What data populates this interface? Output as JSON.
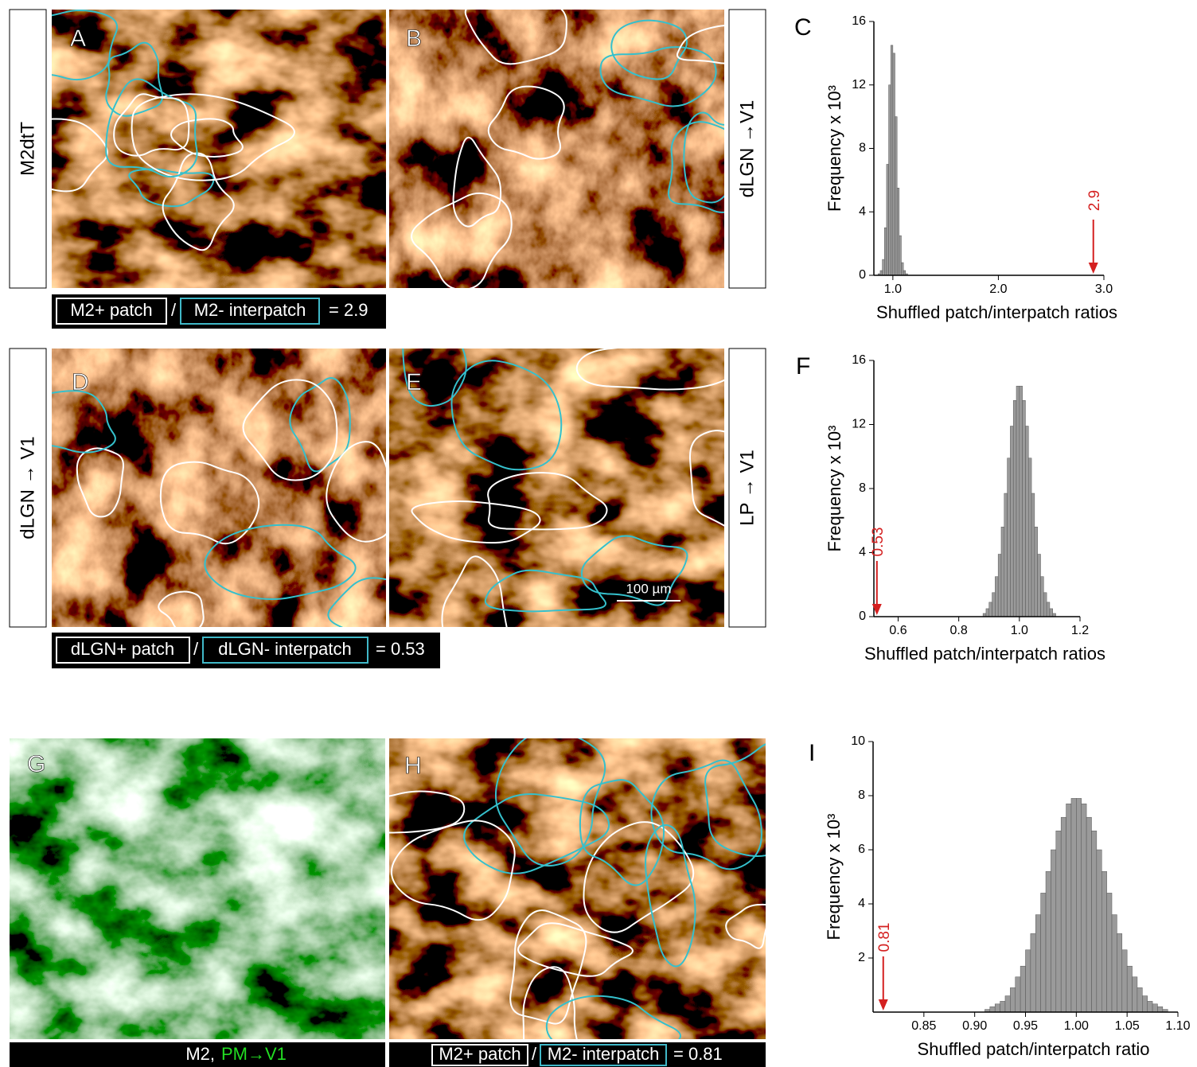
{
  "panel_labels": [
    "A",
    "B",
    "C",
    "D",
    "E",
    "F",
    "G",
    "H",
    "I"
  ],
  "side_labels": [
    "M2dtT",
    "dLGN →V1",
    "dLGN → V1",
    "LP → V1"
  ],
  "captions": [
    {
      "patch": "M2+ patch",
      "sep": "/",
      "interpatch": "M2- interpatch",
      "result": "= 2.9"
    },
    {
      "patch": "dLGN+ patch",
      "sep": "/",
      "interpatch": "dLGN- interpatch",
      "result": "= 0.53"
    },
    {
      "patch": "M2+ patch",
      "sep": "/",
      "interpatch": "M2- interpatch",
      "result": "= 0.81"
    }
  ],
  "g_caption": {
    "white": "M2,",
    "green": "PM→V1"
  },
  "scale_bar": "100 µm",
  "chart_data": [
    {
      "type": "histogram",
      "ylabel": "Frequency x 10³",
      "xlabel": "Shuffled patch/interpatch ratios",
      "bins": [
        0.86,
        0.88,
        0.9,
        0.92,
        0.94,
        0.96,
        0.98,
        1.0,
        1.02,
        1.04,
        1.06,
        1.08,
        1.1,
        1.12,
        1.14
      ],
      "counts": [
        0.1,
        0.3,
        1,
        3,
        7,
        12,
        14.5,
        14,
        10,
        5.5,
        2.5,
        0.8,
        0.3,
        0.1
      ],
      "color": "#9a9a9a",
      "xlim": [
        0.82,
        3.0
      ],
      "ylim": [
        0,
        16
      ],
      "xticks": [
        {
          "value": 1,
          "label": "1.0"
        },
        {
          "value": 2,
          "label": "2.0"
        },
        {
          "value": 3,
          "label": "3.0"
        }
      ],
      "yticks": [
        0,
        4,
        8,
        12,
        16
      ],
      "arrow_at": 2.9,
      "arrow_color": "#d42020"
    },
    {
      "type": "histogram",
      "ylabel": "Frequency x 10³",
      "xlabel": "Shuffled patch/interpatch ratios",
      "bins": [
        0.88,
        0.89,
        0.9,
        0.91,
        0.92,
        0.93,
        0.94,
        0.95,
        0.96,
        0.97,
        0.98,
        0.99,
        1.0,
        1.01,
        1.02,
        1.03,
        1.04,
        1.05,
        1.06,
        1.07,
        1.08,
        1.09,
        1.1,
        1.11,
        1.12
      ],
      "counts": [
        0.2,
        0.5,
        0.9,
        1.5,
        2.5,
        3.9,
        5.6,
        7.7,
        9.9,
        11.9,
        13.5,
        14.4,
        14.4,
        13.5,
        11.9,
        9.9,
        7.7,
        5.6,
        3.9,
        2.5,
        1.5,
        0.9,
        0.5,
        0.2
      ],
      "color": "#9a9a9a",
      "xlim": [
        0.52,
        1.2
      ],
      "ylim": [
        0,
        16
      ],
      "xticks": [
        0.6,
        0.8,
        {
          "value": 1,
          "label": "1.0"
        },
        1.2
      ],
      "yticks": [
        0,
        4,
        8,
        12,
        16
      ],
      "arrow_at": 0.53,
      "arrow_color": "#d42020"
    },
    {
      "type": "histogram",
      "ylabel": "Frequency x 10³",
      "xlabel": "Shuffled patch/interpatch ratio",
      "bins": [
        0.91,
        0.915,
        0.92,
        0.925,
        0.93,
        0.935,
        0.94,
        0.945,
        0.95,
        0.955,
        0.96,
        0.965,
        0.97,
        0.975,
        0.98,
        0.985,
        0.99,
        0.995,
        1.0,
        1.005,
        1.01,
        1.015,
        1.02,
        1.025,
        1.03,
        1.035,
        1.04,
        1.045,
        1.05,
        1.055,
        1.06,
        1.065,
        1.07,
        1.075,
        1.08,
        1.085,
        1.09
      ],
      "counts": [
        0.1,
        0.2,
        0.3,
        0.4,
        0.6,
        0.9,
        1.3,
        1.7,
        2.3,
        2.9,
        3.6,
        4.4,
        5.2,
        6.0,
        6.7,
        7.2,
        7.7,
        7.9,
        7.9,
        7.7,
        7.2,
        6.7,
        6.0,
        5.2,
        4.4,
        3.6,
        2.9,
        2.3,
        1.7,
        1.3,
        0.9,
        0.6,
        0.4,
        0.3,
        0.2,
        0.1
      ],
      "color": "#9a9a9a",
      "xlim": [
        0.8,
        1.1
      ],
      "ylim": [
        0,
        10
      ],
      "xticks": [
        0.85,
        {
          "value": 0.9,
          "label": "0.90"
        },
        0.95,
        {
          "value": 1,
          "label": "1.00"
        },
        1.05,
        {
          "value": 1.1,
          "label": "1.10"
        }
      ],
      "yticks": [
        2,
        4,
        6,
        8,
        10
      ],
      "arrow_at": 0.81,
      "arrow_color": "#d42020"
    }
  ]
}
